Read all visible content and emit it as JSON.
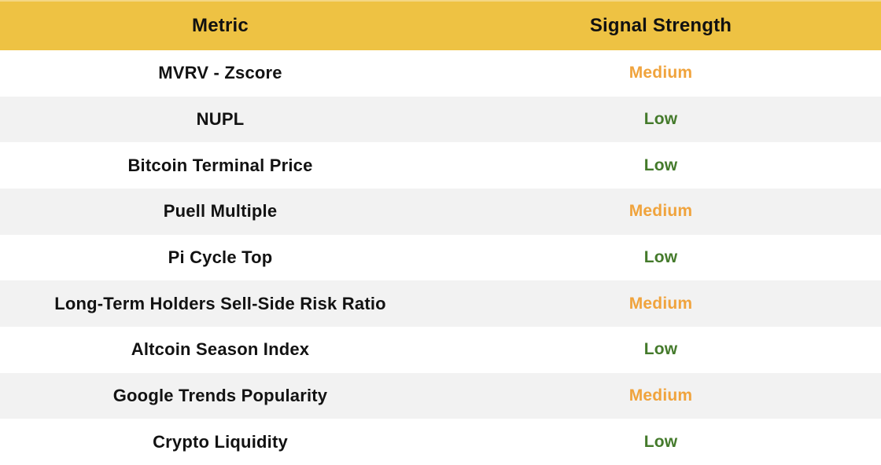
{
  "table": {
    "columns": [
      {
        "label": "Metric"
      },
      {
        "label": "Signal Strength"
      }
    ],
    "rows": [
      {
        "metric": "MVRV - Zscore",
        "signal": "Medium"
      },
      {
        "metric": "NUPL",
        "signal": "Low"
      },
      {
        "metric": "Bitcoin Terminal Price",
        "signal": "Low"
      },
      {
        "metric": "Puell Multiple",
        "signal": "Medium"
      },
      {
        "metric": "Pi Cycle Top",
        "signal": "Low"
      },
      {
        "metric": "Long-Term Holders Sell-Side Risk Ratio",
        "signal": "Medium"
      },
      {
        "metric": "Altcoin Season Index",
        "signal": "Low"
      },
      {
        "metric": "Google Trends Popularity",
        "signal": "Medium"
      },
      {
        "metric": "Crypto Liquidity",
        "signal": "Low"
      }
    ],
    "colors": {
      "header_background": "#EEC243",
      "header_text": "#111111",
      "row_alt_background": "#F2F2F2",
      "row_background": "#FFFFFF",
      "metric_text": "#121212",
      "signal_medium": "#F0A33C",
      "signal_low": "#447A2B"
    }
  },
  "chart_data": {
    "type": "table",
    "title": "",
    "columns": [
      "Metric",
      "Signal Strength"
    ],
    "rows": [
      [
        "MVRV - Zscore",
        "Medium"
      ],
      [
        "NUPL",
        "Low"
      ],
      [
        "Bitcoin Terminal Price",
        "Low"
      ],
      [
        "Puell Multiple",
        "Medium"
      ],
      [
        "Pi Cycle Top",
        "Low"
      ],
      [
        "Long-Term Holders Sell-Side Risk Ratio",
        "Medium"
      ],
      [
        "Altcoin Season Index",
        "Low"
      ],
      [
        "Google Trends Popularity",
        "Medium"
      ],
      [
        "Crypto Liquidity",
        "Low"
      ]
    ],
    "legend_position": "none",
    "grid": false
  }
}
